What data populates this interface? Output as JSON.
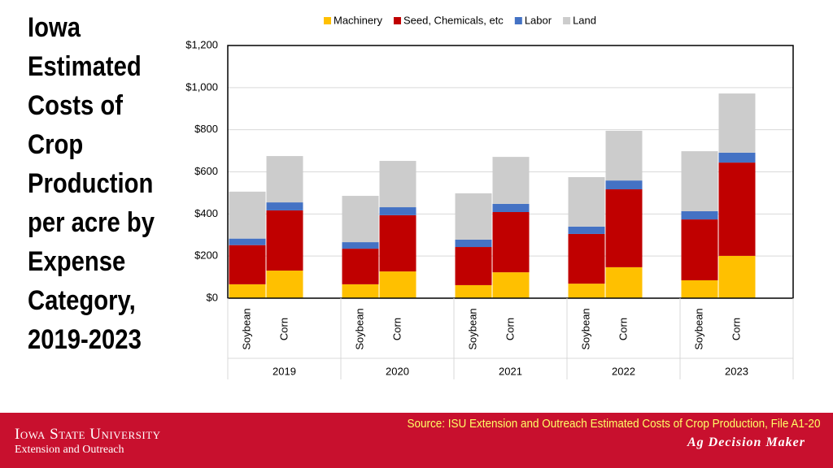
{
  "chart_data": {
    "type": "stacked-bar",
    "title": "Iowa Estimated Costs of Crop Production per acre by Expense Category, 2019-2023",
    "categories": [
      "Soybean",
      "Corn",
      "Soybean",
      "Corn",
      "Soybean",
      "Corn",
      "Soybean",
      "Corn",
      "Soybean",
      "Corn"
    ],
    "groups": [
      "2019",
      "2020",
      "2021",
      "2022",
      "2023"
    ],
    "series": [
      {
        "name": "Machinery",
        "color": "#ffc000",
        "values": [
          66,
          131,
          66,
          127,
          62,
          123,
          69,
          147,
          85,
          201
        ]
      },
      {
        "name": "Seed, Chemicals, etc",
        "color": "#c00000",
        "values": [
          186,
          286,
          169,
          267,
          181,
          286,
          236,
          370,
          289,
          443
        ]
      },
      {
        "name": "Labor",
        "color": "#4472c4",
        "values": [
          31,
          38,
          31,
          38,
          35,
          39,
          35,
          42,
          39,
          47
        ]
      },
      {
        "name": "Land",
        "color": "#cccccc",
        "values": [
          223,
          220,
          220,
          220,
          220,
          223,
          235,
          236,
          285,
          281
        ]
      }
    ],
    "ylim": [
      0,
      1200
    ],
    "yticks": [
      {
        "value": 0,
        "label": "$0"
      },
      {
        "value": 200,
        "label": "$200"
      },
      {
        "value": 400,
        "label": "$400"
      },
      {
        "value": 600,
        "label": "$600"
      },
      {
        "value": 800,
        "label": "$800"
      },
      {
        "value": 1000,
        "label": "$1,000"
      },
      {
        "value": 1200,
        "label": "$1,200"
      }
    ],
    "grid": true
  },
  "footer": {
    "source": "Source: ISU Extension and Outreach Estimated Costs of Crop Production, File A1-20",
    "university": "Iowa State University",
    "unit": "Extension and Outreach",
    "program": "Ag Decision Maker"
  }
}
